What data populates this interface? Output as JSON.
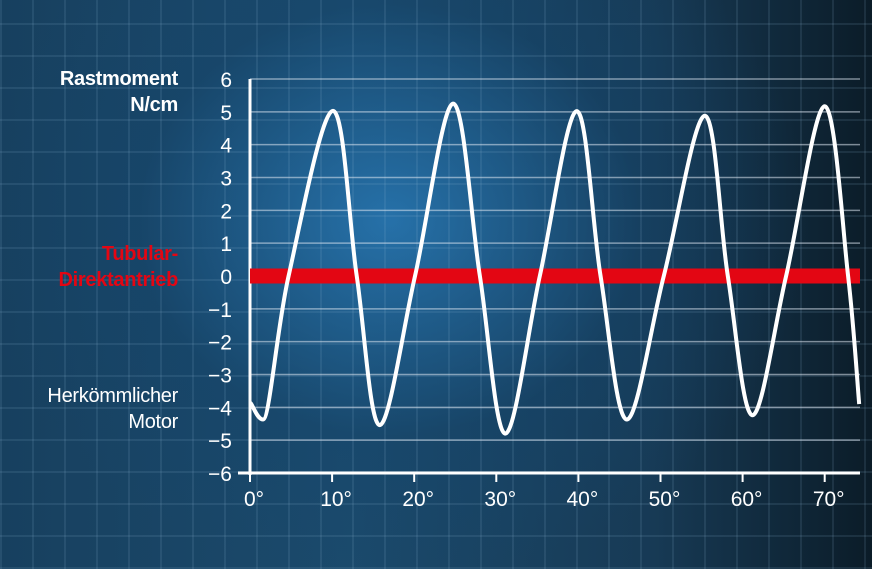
{
  "chart_data": {
    "type": "line",
    "ylabel": "Rastmoment N/cm",
    "xlim": [
      0,
      74.3
    ],
    "ylim": [
      -6,
      6
    ],
    "yticks": [
      "6",
      "5",
      "4",
      "3",
      "2",
      "1",
      "0",
      "−1",
      "−2",
      "−3",
      "−4",
      "−5",
      "−6"
    ],
    "xticks": [
      "0°",
      "10°",
      "20°",
      "30°",
      "40°",
      "50°",
      "60°",
      "70°"
    ],
    "grid": true,
    "series": [
      {
        "name": "Herkömmlicher Motor",
        "color": "#ffffff",
        "x": [
          0,
          1.6,
          4.7,
          10.1,
          13.0,
          15.8,
          20.1,
          24.75,
          28.0,
          31.1,
          35.3,
          39.8,
          42.7,
          45.9,
          50.4,
          55.4,
          58.2,
          61.2,
          65.3,
          70.0,
          72.85,
          74.2
        ],
        "y": [
          -3.86,
          -4.37,
          0,
          5.03,
          0,
          -4.54,
          0,
          5.25,
          0,
          -4.8,
          0,
          5.02,
          0,
          -4.37,
          0,
          4.88,
          0,
          -4.24,
          0,
          5.17,
          0,
          -3.9
        ]
      },
      {
        "name": "Tubular-Direktantrieb",
        "color": "#e30613",
        "x": [
          0,
          74.3
        ],
        "y": [
          0,
          0
        ]
      }
    ]
  },
  "labels": {
    "ylabel_line1": "Rastmoment",
    "ylabel_line2": "N/cm",
    "red_line1": "Tubular-",
    "red_line2": "Direktantrieb",
    "white_line1": "Herkömmlicher",
    "white_line2": "Motor"
  }
}
